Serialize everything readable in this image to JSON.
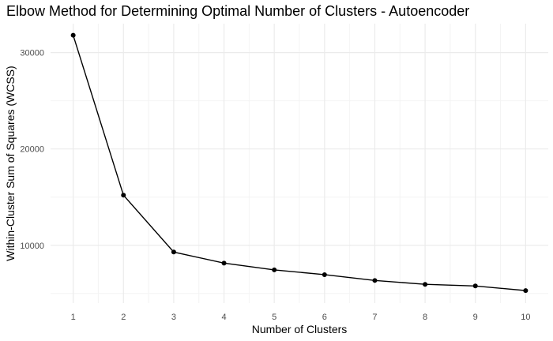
{
  "chart_data": {
    "type": "line",
    "title": "Elbow Method for Determining Optimal Number of Clusters - Autoencoder",
    "xlabel": "Number of Clusters",
    "ylabel": "Within-Cluster Sum of Squares (WCSS)",
    "x": [
      1,
      2,
      3,
      4,
      5,
      6,
      7,
      8,
      9,
      10
    ],
    "series": [
      {
        "values": [
          31800,
          15200,
          9300,
          8150,
          7450,
          6950,
          6350,
          5950,
          5780,
          5300
        ]
      }
    ],
    "xticks": [
      "1",
      "2",
      "3",
      "4",
      "5",
      "6",
      "7",
      "8",
      "9",
      "10"
    ],
    "yticks": [
      10000,
      20000,
      30000
    ],
    "yticklabels": [
      "10000",
      "20000",
      "30000"
    ],
    "xlim": [
      0.55,
      10.45
    ],
    "ylim": [
      4000,
      33000
    ],
    "grid": true,
    "legend": "none",
    "colors": {
      "line": "#000000",
      "points": "#000000",
      "grid_major": "#ebebeb",
      "grid_minor": "#f4f4f4"
    }
  }
}
